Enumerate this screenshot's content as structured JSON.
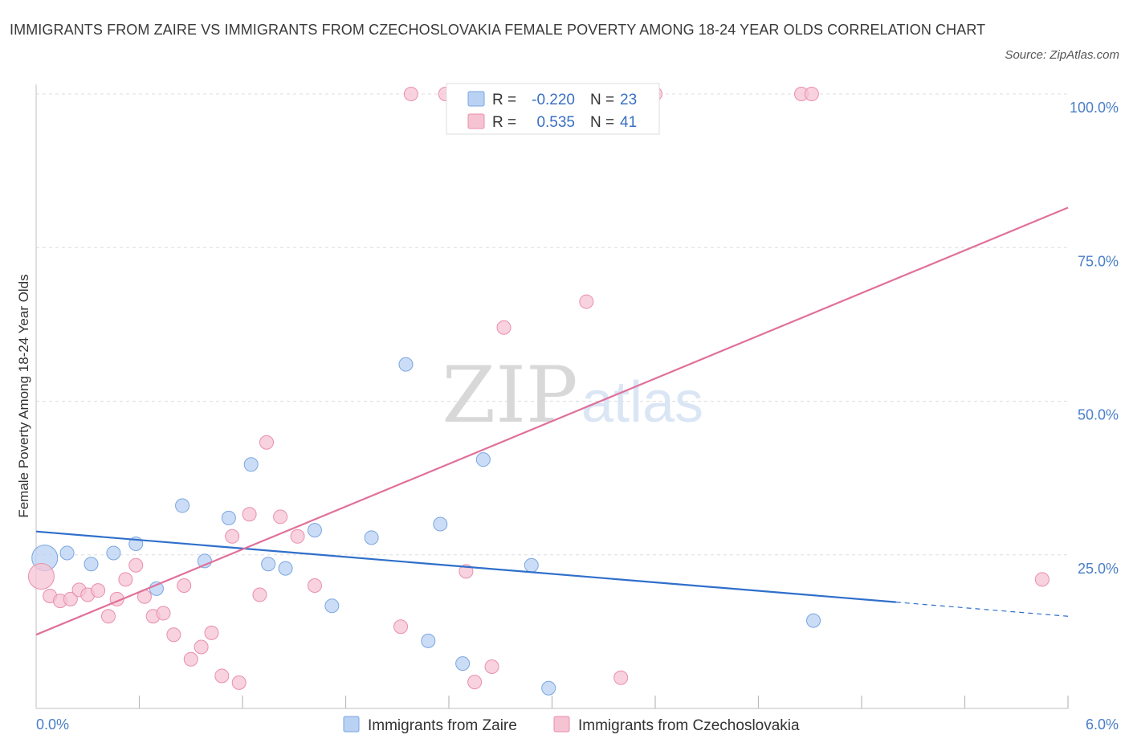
{
  "title": "IMMIGRANTS FROM ZAIRE VS IMMIGRANTS FROM CZECHOSLOVAKIA FEMALE POVERTY AMONG 18-24 YEAR OLDS CORRELATION CHART",
  "source": "Source: ZipAtlas.com",
  "watermark": {
    "zip": "ZIP",
    "atlas": "atlas"
  },
  "colors": {
    "zaire_fill": "#b9d1f3",
    "zaire_stroke": "#7aa6e0",
    "zaire_line": "#2f6fcb",
    "czech_fill": "#f6c3d3",
    "czech_stroke": "#e98fad",
    "czech_line": "#e0709a",
    "grid": "#dddddd",
    "tick_label": "#4a7ec8"
  },
  "legend_box": {
    "rows": [
      {
        "r_label": "R =",
        "r_value": "-0.220",
        "n_label": "N =",
        "n_value": "23"
      },
      {
        "r_label": "R =",
        "r_value": "0.535",
        "n_label": "N =",
        "n_value": "41"
      }
    ]
  },
  "chart_data": {
    "type": "scatter",
    "xlabel": "",
    "ylabel": "Female Poverty Among 18-24 Year Olds",
    "xlim": [
      0,
      6
    ],
    "ylim": [
      0,
      100
    ],
    "x_tick_labels": [
      "0.0%",
      "6.0%"
    ],
    "y_ticks": [
      25,
      50,
      75,
      100
    ],
    "y_tick_labels": [
      "25.0%",
      "50.0%",
      "75.0%",
      "100.0%"
    ],
    "grid": true,
    "series": [
      {
        "name": "Immigrants from Zaire",
        "R": -0.22,
        "N": 23,
        "points": [
          {
            "x": 0.05,
            "y": 24.5,
            "big": true
          },
          {
            "x": 0.18,
            "y": 25.3
          },
          {
            "x": 0.32,
            "y": 23.5
          },
          {
            "x": 0.45,
            "y": 25.3
          },
          {
            "x": 0.58,
            "y": 26.8
          },
          {
            "x": 0.7,
            "y": 19.5
          },
          {
            "x": 0.85,
            "y": 33.0
          },
          {
            "x": 0.98,
            "y": 24.0
          },
          {
            "x": 1.12,
            "y": 31.0
          },
          {
            "x": 1.25,
            "y": 39.7
          },
          {
            "x": 1.35,
            "y": 23.5
          },
          {
            "x": 1.45,
            "y": 22.8
          },
          {
            "x": 1.62,
            "y": 29.0
          },
          {
            "x": 1.72,
            "y": 16.7
          },
          {
            "x": 1.95,
            "y": 27.8
          },
          {
            "x": 2.15,
            "y": 56.0
          },
          {
            "x": 2.28,
            "y": 11.0
          },
          {
            "x": 2.35,
            "y": 30.0
          },
          {
            "x": 2.48,
            "y": 7.3
          },
          {
            "x": 2.6,
            "y": 40.5
          },
          {
            "x": 2.88,
            "y": 23.3
          },
          {
            "x": 2.98,
            "y": 3.3
          },
          {
            "x": 4.52,
            "y": 14.3
          }
        ],
        "trend": {
          "x0": 0.0,
          "y0": 28.8,
          "x1": 5.0,
          "y1": 17.3,
          "dash_x1": 6.0,
          "dash_y1": 15.0
        }
      },
      {
        "name": "Immigrants from Czechoslovakia",
        "R": 0.535,
        "N": 41,
        "points": [
          {
            "x": 0.03,
            "y": 21.5,
            "big": true
          },
          {
            "x": 0.08,
            "y": 18.3
          },
          {
            "x": 0.14,
            "y": 17.5
          },
          {
            "x": 0.2,
            "y": 17.8
          },
          {
            "x": 0.25,
            "y": 19.3
          },
          {
            "x": 0.3,
            "y": 18.5
          },
          {
            "x": 0.36,
            "y": 19.2
          },
          {
            "x": 0.42,
            "y": 15.0
          },
          {
            "x": 0.47,
            "y": 17.8
          },
          {
            "x": 0.52,
            "y": 21.0
          },
          {
            "x": 0.58,
            "y": 23.3
          },
          {
            "x": 0.63,
            "y": 18.2
          },
          {
            "x": 0.68,
            "y": 15.0
          },
          {
            "x": 0.74,
            "y": 15.5
          },
          {
            "x": 0.8,
            "y": 12.0
          },
          {
            "x": 0.86,
            "y": 20.0
          },
          {
            "x": 0.9,
            "y": 8.0
          },
          {
            "x": 0.96,
            "y": 10.0
          },
          {
            "x": 1.02,
            "y": 12.3
          },
          {
            "x": 1.08,
            "y": 5.3
          },
          {
            "x": 1.14,
            "y": 28.0
          },
          {
            "x": 1.18,
            "y": 4.2
          },
          {
            "x": 1.24,
            "y": 31.6
          },
          {
            "x": 1.3,
            "y": 18.5
          },
          {
            "x": 1.34,
            "y": 43.3
          },
          {
            "x": 1.42,
            "y": 31.2
          },
          {
            "x": 1.52,
            "y": 28.0
          },
          {
            "x": 1.62,
            "y": 20.0
          },
          {
            "x": 2.12,
            "y": 13.3
          },
          {
            "x": 2.5,
            "y": 22.3
          },
          {
            "x": 2.55,
            "y": 4.3
          },
          {
            "x": 2.65,
            "y": 6.8
          },
          {
            "x": 2.72,
            "y": 62.0
          },
          {
            "x": 3.2,
            "y": 66.2
          },
          {
            "x": 3.4,
            "y": 5.0
          },
          {
            "x": 2.18,
            "y": 100
          },
          {
            "x": 2.38,
            "y": 100
          },
          {
            "x": 3.6,
            "y": 100
          },
          {
            "x": 4.45,
            "y": 100
          },
          {
            "x": 4.51,
            "y": 100
          },
          {
            "x": 5.85,
            "y": 21.0
          }
        ],
        "trend": {
          "x0": 0.0,
          "y0": 12.0,
          "x1": 6.0,
          "y1": 81.5
        }
      }
    ]
  }
}
